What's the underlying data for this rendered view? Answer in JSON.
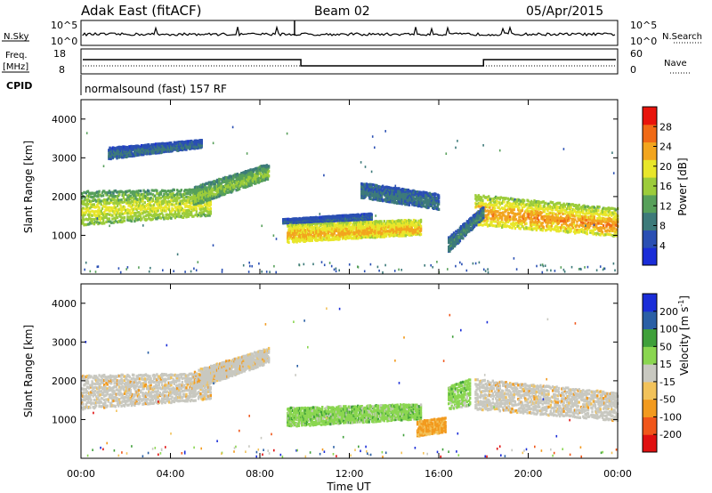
{
  "header": {
    "site": "Adak East (fitACF)",
    "beam": "Beam 02",
    "date": "05/Apr/2015"
  },
  "status_panels": {
    "nsky_label": "N.Sky",
    "nsearch_label": "N.Search",
    "noise_ticks": [
      "10^5",
      "10^0"
    ],
    "freq_label_top": "Freq.",
    "freq_label_unit": "[MHz]",
    "freq_ticks": [
      "18",
      "8"
    ],
    "nave_label": "Nave",
    "nave_ticks": [
      "60",
      "0"
    ],
    "cpid_label": "CPID",
    "cpid_text": "normalsound (fast) 157 RF",
    "freq_step_times": [
      "09:50",
      "18:00"
    ]
  },
  "colors": {
    "power": [
      "#1a2dd8",
      "#2a4fb3",
      "#3d7a7a",
      "#57a05a",
      "#9ccc3a",
      "#e8e62a",
      "#f2a51e",
      "#f06a16",
      "#e8140c"
    ],
    "velocity": [
      "#e01010",
      "#f0561a",
      "#f29a1e",
      "#f2c25a",
      "#c8c8c0",
      "#8ad650",
      "#3fa03a",
      "#2a5fa5",
      "#1a2dd8"
    ]
  },
  "chart_data": [
    {
      "type": "heatmap",
      "name": "power",
      "ylabel": "Slant Range [km]",
      "yticks": [
        "1000",
        "2000",
        "3000",
        "4000"
      ],
      "ylim": [
        0,
        4500
      ],
      "xlim": [
        "00:00",
        "24:00"
      ],
      "xticks": [
        "00:00",
        "04:00",
        "08:00",
        "12:00",
        "16:00",
        "20:00",
        "00:00"
      ],
      "colorbar_label": "Power [dB]",
      "colorbar_ticks": [
        "4",
        "8",
        "12",
        "16",
        "20",
        "24",
        "28"
      ],
      "colorbar_range": [
        0,
        32
      ],
      "bands": [
        {
          "t": [
            0.0,
            5.8
          ],
          "r0": [
            1300,
            1550
          ],
          "r1": [
            2200,
            2250
          ],
          "v": [
            10,
            20
          ]
        },
        {
          "t": [
            5.0,
            8.4
          ],
          "r0": [
            1800,
            2500
          ],
          "r1": [
            2300,
            2900
          ],
          "v": [
            8,
            16
          ]
        },
        {
          "t": [
            1.2,
            5.4
          ],
          "r0": [
            3000,
            3300
          ],
          "r1": [
            3300,
            3500
          ],
          "v": [
            3,
            8
          ]
        },
        {
          "t": [
            9.2,
            15.2
          ],
          "r0": [
            850,
            1050
          ],
          "r1": [
            1350,
            1450
          ],
          "v": [
            16,
            24
          ]
        },
        {
          "t": [
            9.0,
            13.0
          ],
          "r0": [
            1350,
            1450
          ],
          "r1": [
            1450,
            1600
          ],
          "v": [
            3,
            6
          ]
        },
        {
          "t": [
            17.6,
            24.0
          ],
          "r0": [
            1300,
            1000
          ],
          "r1": [
            2100,
            1750
          ],
          "v": [
            14,
            26
          ]
        },
        {
          "t": [
            16.4,
            18.0
          ],
          "r0": [
            600,
            1500
          ],
          "r1": [
            1000,
            1800
          ],
          "v": [
            4,
            10
          ]
        },
        {
          "t": [
            12.5,
            16.0
          ],
          "r0": [
            2000,
            1700
          ],
          "r1": [
            2400,
            2100
          ],
          "v": [
            4,
            8
          ]
        }
      ]
    },
    {
      "type": "heatmap",
      "name": "velocity",
      "ylabel": "Slant Range [km]",
      "yticks": [
        "1000",
        "2000",
        "3000",
        "4000"
      ],
      "ylim": [
        0,
        4500
      ],
      "xlim": [
        "00:00",
        "24:00"
      ],
      "xticks": [
        "00:00",
        "04:00",
        "08:00",
        "12:00",
        "16:00",
        "20:00",
        "00:00"
      ],
      "xlabel": "Time UT",
      "colorbar_label": "Velocity [m s^-1]",
      "colorbar_ticks": [
        "-200",
        "-100",
        "-50",
        "-15",
        "15",
        "50",
        "100",
        "200"
      ],
      "bands": [
        {
          "t": [
            0.0,
            5.8
          ],
          "r0": [
            1300,
            1550
          ],
          "r1": [
            2200,
            2250
          ],
          "v": "gray"
        },
        {
          "t": [
            5.0,
            8.4
          ],
          "r0": [
            1800,
            2500
          ],
          "r1": [
            2300,
            2900
          ],
          "v": "gray"
        },
        {
          "t": [
            9.2,
            15.2
          ],
          "r0": [
            850,
            1050
          ],
          "r1": [
            1350,
            1450
          ],
          "v": "green"
        },
        {
          "t": [
            17.6,
            24.0
          ],
          "r0": [
            1300,
            1000
          ],
          "r1": [
            2100,
            1750
          ],
          "v": "gray"
        },
        {
          "t": [
            15.0,
            16.3
          ],
          "r0": [
            600,
            700
          ],
          "r1": [
            1000,
            1100
          ],
          "v": "orange"
        },
        {
          "t": [
            16.4,
            17.4
          ],
          "r0": [
            1300,
            1400
          ],
          "r1": [
            1900,
            2100
          ],
          "v": "green"
        }
      ]
    }
  ]
}
